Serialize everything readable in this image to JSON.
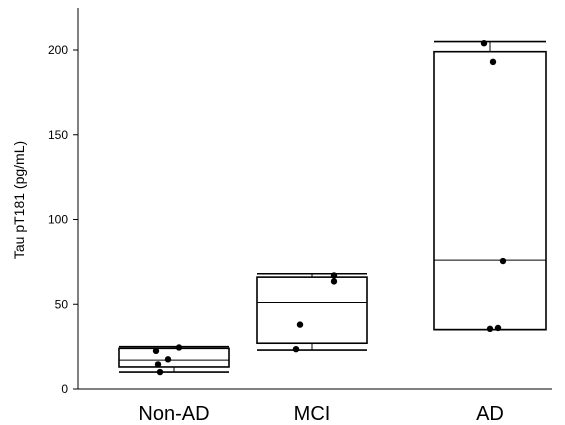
{
  "chart_data": {
    "type": "box",
    "title": "",
    "xlabel": "",
    "ylabel": "Tau pT181 (pg/mL)",
    "ylim": [
      0,
      225
    ],
    "yticks": [
      0,
      50,
      100,
      150,
      200
    ],
    "grid": false,
    "categories": [
      "Non-AD",
      "MCI",
      "AD"
    ],
    "boxes": [
      {
        "category": "Non-AD",
        "min": 10,
        "q1": 13,
        "median": 17,
        "q3": 24,
        "max": 25,
        "points": [
          24.5,
          22.5,
          17.5,
          14.5,
          10
        ]
      },
      {
        "category": "MCI",
        "min": 23,
        "q1": 27,
        "median": 51,
        "q3": 66,
        "max": 68,
        "points": [
          67,
          63.5,
          38,
          23.5
        ]
      },
      {
        "category": "AD",
        "min": 35,
        "q1": 35,
        "median": 76,
        "q3": 199,
        "max": 205,
        "points": [
          204,
          193,
          75.5,
          36,
          35.5
        ]
      }
    ],
    "colors": {
      "box": "#000000",
      "point": "#000000",
      "background": "#ffffff"
    }
  }
}
